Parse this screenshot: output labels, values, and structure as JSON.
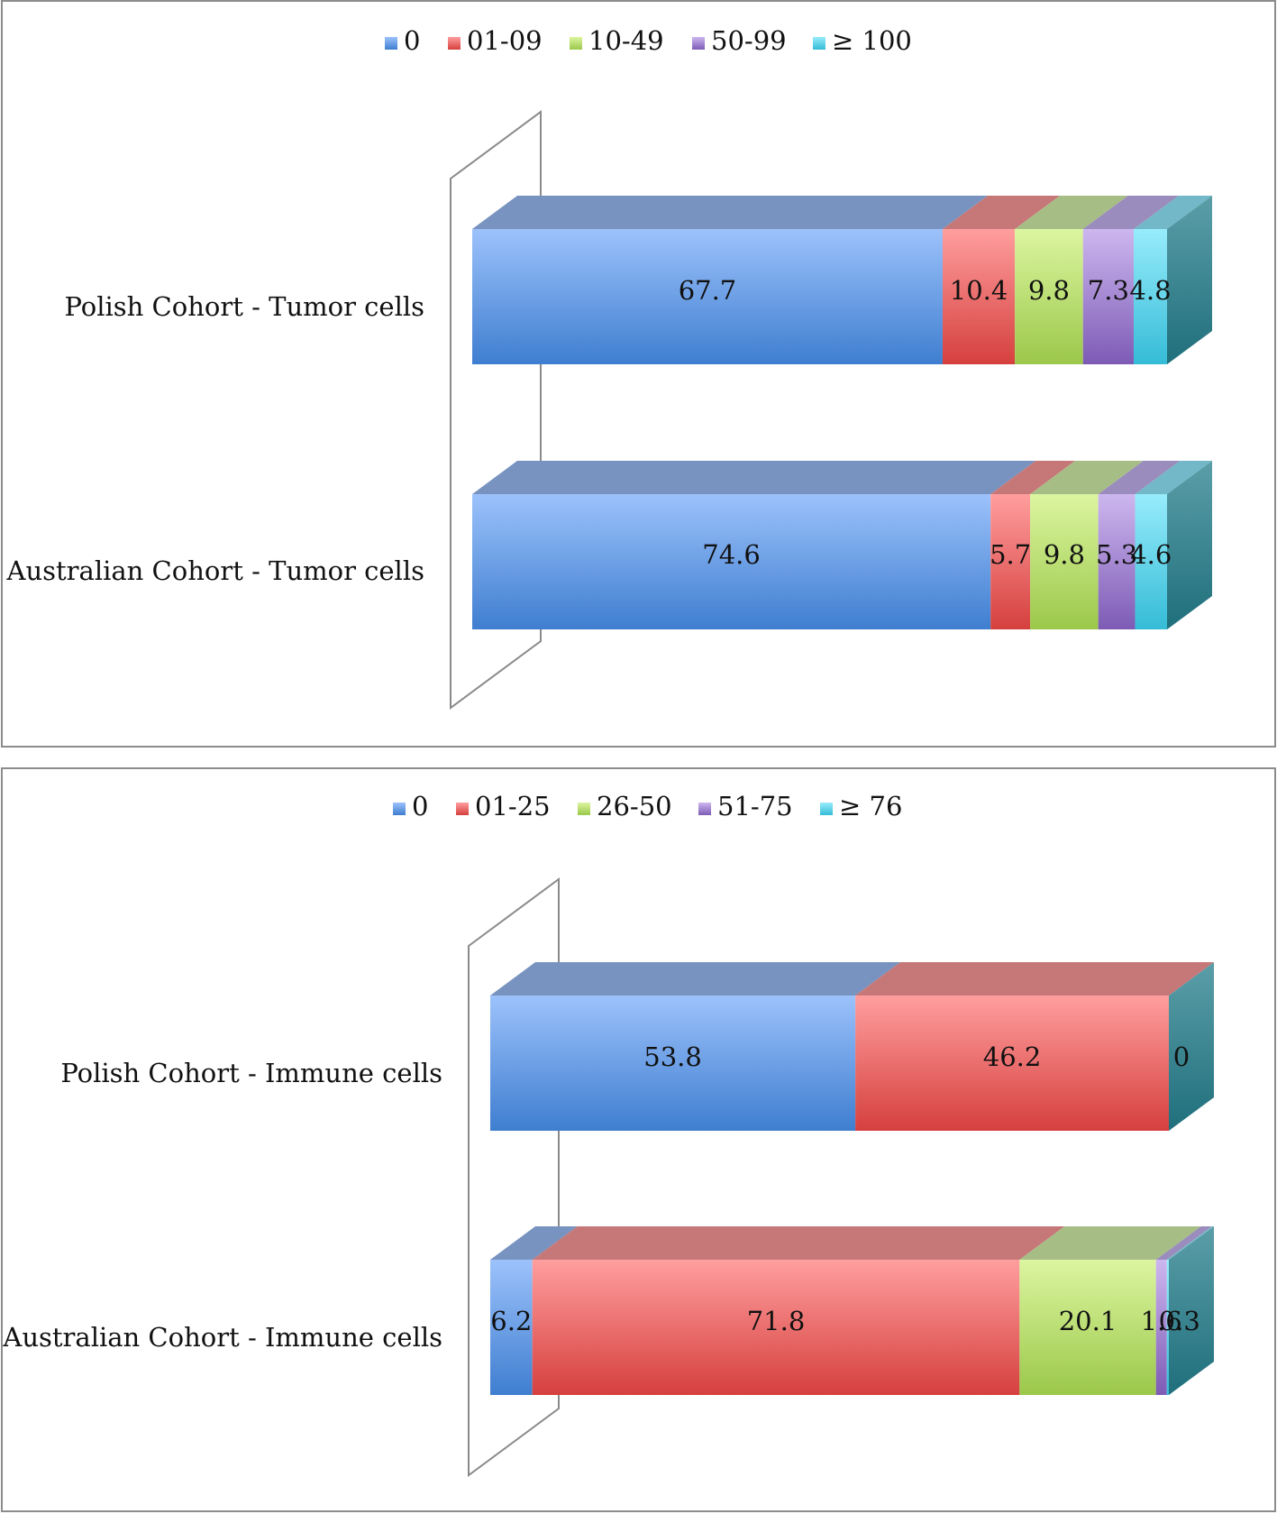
{
  "colors": {
    "blue": "#5b8fd8",
    "red": "#e05a5a",
    "green": "#a8cf5a",
    "purple": "#8a6cc0",
    "cyan": "#4cc6df"
  },
  "chart_data": [
    {
      "type": "bar",
      "orientation": "horizontal",
      "stacked": true,
      "three_d": true,
      "categories": [
        "Polish Cohort - Tumor cells",
        "Australian Cohort - Tumor cells"
      ],
      "series": [
        {
          "name": "0",
          "values": [
            67.7,
            74.6
          ],
          "labels": [
            "67.7",
            "74.6"
          ]
        },
        {
          "name": "01-09",
          "values": [
            10.4,
            5.7
          ],
          "labels": [
            "10.4",
            "5.7"
          ]
        },
        {
          "name": "10-49",
          "values": [
            9.8,
            9.8
          ],
          "labels": [
            "9.8",
            "9.8"
          ]
        },
        {
          "name": "50-99",
          "values": [
            7.3,
            5.3
          ],
          "labels": [
            "7.3",
            "5.3"
          ]
        },
        {
          "name": "≥ 100",
          "values": [
            4.8,
            4.6
          ],
          "labels": [
            "4.8",
            "4.6"
          ]
        }
      ],
      "xlim": [
        0,
        100
      ],
      "legend_position": "top"
    },
    {
      "type": "bar",
      "orientation": "horizontal",
      "stacked": true,
      "three_d": true,
      "categories": [
        "Polish Cohort - Immune cells",
        "Australian Cohort - Immune cells"
      ],
      "series": [
        {
          "name": "0",
          "values": [
            53.8,
            6.2
          ],
          "labels": [
            "53.8",
            "6.2"
          ]
        },
        {
          "name": "01-25",
          "values": [
            46.2,
            71.8
          ],
          "labels": [
            "46.2",
            "71.8"
          ]
        },
        {
          "name": "26-50",
          "values": [
            0,
            20.1
          ],
          "labels": [
            "0",
            "20.1"
          ]
        },
        {
          "name": "51-75",
          "values": [
            0,
            1.6
          ],
          "labels": [
            "",
            "1.6"
          ]
        },
        {
          "name": "≥ 76",
          "values": [
            0,
            0.3
          ],
          "labels": [
            "",
            "0.3"
          ]
        }
      ],
      "xlim": [
        0,
        100
      ],
      "legend_position": "top"
    }
  ]
}
